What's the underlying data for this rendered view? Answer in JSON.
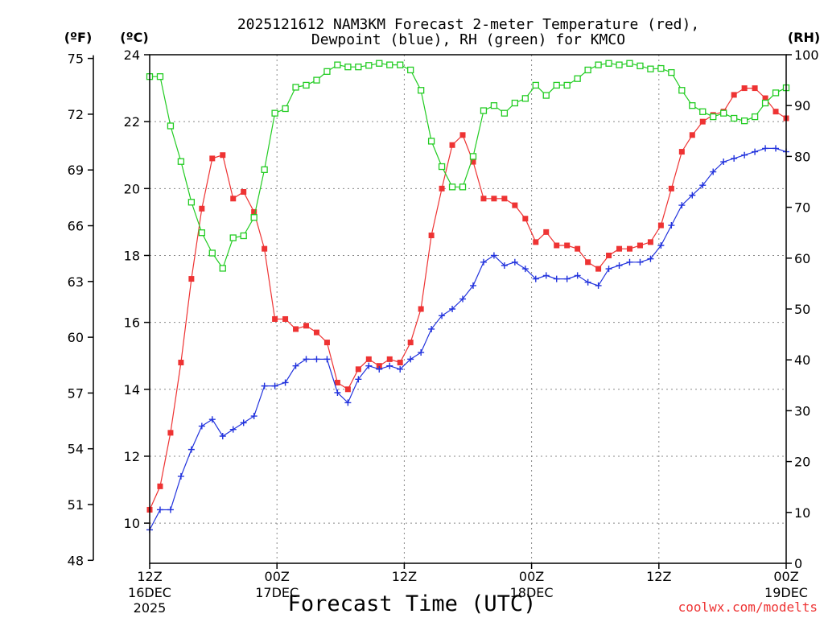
{
  "title": {
    "line1": "2025121612 NAM3KM Forecast 2-meter Temperature (red),",
    "line2": "Dewpoint (blue), RH (green) for KMCO"
  },
  "units": {
    "left_f": "(ºF)",
    "left_c": "(ºC)",
    "right": "(RH)"
  },
  "xlabel": "Forecast Time (UTC)",
  "credit": "coolwx.com/modelts",
  "colors": {
    "temperature": "#ee3333",
    "dewpoint": "#2233dd",
    "rh": "#22cc22",
    "grid": "#888888"
  },
  "chart_data": {
    "type": "line",
    "x_unit": "hours from 2025-12-16 12Z",
    "x_ticks": [
      {
        "hour": 0,
        "line1": "12Z",
        "line2": "16DEC",
        "line3": "2025"
      },
      {
        "hour": 12,
        "line1": "00Z",
        "line2": "17DEC",
        "line3": ""
      },
      {
        "hour": 24,
        "line1": "12Z",
        "line2": "",
        "line3": ""
      },
      {
        "hour": 36,
        "line1": "00Z",
        "line2": "18DEC",
        "line3": ""
      },
      {
        "hour": 48,
        "line1": "12Z",
        "line2": "",
        "line3": ""
      },
      {
        "hour": 60,
        "line1": "00Z",
        "line2": "19DEC",
        "line3": ""
      }
    ],
    "xlim": [
      0,
      60
    ],
    "ylim_c": [
      8.8,
      24
    ],
    "ylim_rh": [
      0,
      100
    ],
    "f_ticks": [
      75,
      72,
      69,
      66,
      63,
      60,
      57,
      54,
      51,
      48
    ],
    "c_ticks": [
      24,
      22,
      20,
      18,
      16,
      14,
      12,
      10
    ],
    "rh_ticks": [
      100,
      90,
      80,
      70,
      60,
      50,
      40,
      30,
      20,
      10,
      0
    ],
    "series": [
      {
        "name": "2-meter Temperature",
        "axis": "c",
        "marker": "square-filled",
        "color": "#ee3333",
        "values": [
          10.4,
          11.1,
          12.7,
          14.8,
          17.3,
          19.4,
          20.9,
          21.0,
          19.7,
          19.9,
          19.3,
          18.2,
          16.1,
          16.1,
          15.8,
          15.9,
          15.7,
          15.4,
          14.2,
          14.0,
          14.6,
          14.9,
          14.7,
          14.9,
          14.8,
          15.4,
          16.4,
          18.6,
          20.0,
          21.3,
          21.6,
          20.8,
          19.7,
          19.7,
          19.7,
          19.5,
          19.1,
          18.4,
          18.7,
          18.3,
          18.3,
          18.2,
          17.8,
          17.6,
          18.0,
          18.2,
          18.2,
          18.3,
          18.4,
          18.9,
          20.0,
          21.1,
          21.6,
          22.0,
          22.2,
          22.3,
          22.8,
          23.0,
          23.0,
          22.7,
          22.3,
          22.1
        ]
      },
      {
        "name": "Dewpoint",
        "axis": "c",
        "marker": "plus",
        "color": "#2233dd",
        "values": [
          9.8,
          10.4,
          10.4,
          11.4,
          12.2,
          12.9,
          13.1,
          12.6,
          12.8,
          13.0,
          13.2,
          14.1,
          14.1,
          14.2,
          14.7,
          14.9,
          14.9,
          14.9,
          13.9,
          13.6,
          14.3,
          14.7,
          14.6,
          14.7,
          14.6,
          14.9,
          15.1,
          15.8,
          16.2,
          16.4,
          16.7,
          17.1,
          17.8,
          18.0,
          17.7,
          17.8,
          17.6,
          17.3,
          17.4,
          17.3,
          17.3,
          17.4,
          17.2,
          17.1,
          17.6,
          17.7,
          17.8,
          17.8,
          17.9,
          18.3,
          18.9,
          19.5,
          19.8,
          20.1,
          20.5,
          20.8,
          20.9,
          21.0,
          21.1,
          21.2,
          21.2,
          21.1
        ]
      },
      {
        "name": "RH",
        "axis": "rh",
        "marker": "square-open",
        "color": "#22cc22",
        "values": [
          95.7,
          95.7,
          86,
          79,
          71,
          65,
          61,
          58,
          64,
          64.4,
          68,
          77.4,
          88.5,
          89.4,
          93.6,
          94,
          95,
          96.7,
          98,
          97.6,
          97.6,
          97.9,
          98.3,
          98,
          98,
          97,
          93,
          83,
          78,
          74,
          74,
          80,
          89,
          90,
          88.5,
          90.5,
          91.4,
          94,
          92,
          94,
          94,
          95.3,
          97,
          98,
          98.3,
          98,
          98.3,
          97.8,
          97.2,
          97.3,
          96.5,
          93,
          90,
          88.8,
          87.8,
          88.5,
          87.5,
          87,
          87.8,
          90.5,
          92.5,
          93.5
        ]
      }
    ]
  }
}
